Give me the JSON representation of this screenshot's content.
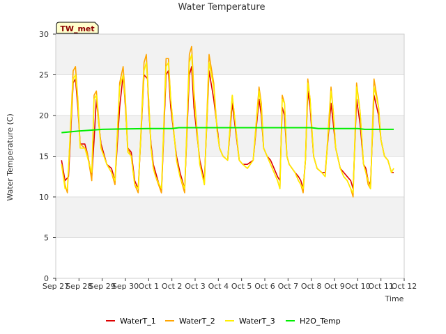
{
  "chart_data": {
    "type": "line",
    "title": "Water Temperature",
    "xlabel": "Time",
    "ylabel": "Water Temperature (C)",
    "station_label": "TW_met",
    "ylim": [
      0,
      30
    ],
    "yticks": [
      0,
      5,
      10,
      15,
      20,
      25,
      30
    ],
    "xlim": [
      0,
      15
    ],
    "xticks": [
      "Sep 27",
      "Sep 28",
      "Sep 29",
      "Sep 30",
      "Oct 1",
      "Oct 2",
      "Oct 3",
      "Oct 4",
      "Oct 5",
      "Oct 6",
      "Oct 7",
      "Oct 8",
      "Oct 9",
      "Oct 10",
      "Oct 11",
      "Oct 12"
    ],
    "grid": "horizontal bands",
    "legend_position": "bottom",
    "series": [
      {
        "name": "WaterT_1",
        "color": "#dd0000",
        "x": [
          0.25,
          0.4,
          0.55,
          0.75,
          0.85,
          0.95,
          1.05,
          1.25,
          1.35,
          1.55,
          1.65,
          1.75,
          1.85,
          1.95,
          2.2,
          2.4,
          2.55,
          2.75,
          2.9,
          3.0,
          3.1,
          3.25,
          3.4,
          3.55,
          3.8,
          3.95,
          4.0,
          4.1,
          4.2,
          4.3,
          4.55,
          4.75,
          4.85,
          4.95,
          5.2,
          5.35,
          5.55,
          5.75,
          5.85,
          5.95,
          6.2,
          6.4,
          6.6,
          6.8,
          6.95,
          7.05,
          7.2,
          7.4,
          7.6,
          7.9,
          8.05,
          8.25,
          8.5,
          8.75,
          8.85,
          8.95,
          9.1,
          9.25,
          9.4,
          9.55,
          9.65,
          9.75,
          9.85,
          9.95,
          10.05,
          10.3,
          10.45,
          10.55,
          10.65,
          10.75,
          10.85,
          10.95,
          11.1,
          11.25,
          11.45,
          11.6,
          11.85,
          11.95,
          12.05,
          12.25,
          12.4,
          12.55,
          12.7,
          12.8,
          12.95,
          13.1,
          13.25,
          13.35,
          13.45,
          13.55,
          13.7,
          13.9,
          14.0,
          14.15,
          14.3,
          14.45,
          14.55
        ],
        "values": [
          14.5,
          12.0,
          12.5,
          24.0,
          24.5,
          21.0,
          16.5,
          16.5,
          15.5,
          12.5,
          17.0,
          22.0,
          19.0,
          16.5,
          14.0,
          13.5,
          12.0,
          21.0,
          25.0,
          21.0,
          16.0,
          15.5,
          12.0,
          11.0,
          25.0,
          24.5,
          21.0,
          16.5,
          14.0,
          13.0,
          10.5,
          25.0,
          25.5,
          21.0,
          15.0,
          13.0,
          11.0,
          25.0,
          26.0,
          21.0,
          14.5,
          12.0,
          25.5,
          22.0,
          18.5,
          16.0,
          15.0,
          14.5,
          21.5,
          14.5,
          14.0,
          14.0,
          14.5,
          22.0,
          20.0,
          16.0,
          15.0,
          14.5,
          13.5,
          12.5,
          12.0,
          21.0,
          20.0,
          15.0,
          14.0,
          13.0,
          12.5,
          12.0,
          11.0,
          14.5,
          23.0,
          21.0,
          15.0,
          13.5,
          13.0,
          13.0,
          21.5,
          19.0,
          16.0,
          13.5,
          13.0,
          12.5,
          12.0,
          11.0,
          22.0,
          19.0,
          14.0,
          13.5,
          12.0,
          11.5,
          22.5,
          20.0,
          17.0,
          15.0,
          14.5,
          13.0,
          13.0
        ]
      },
      {
        "name": "WaterT_2",
        "color": "#ffa500",
        "x": [
          0.25,
          0.4,
          0.5,
          0.75,
          0.85,
          0.95,
          1.05,
          1.25,
          1.35,
          1.55,
          1.65,
          1.75,
          1.85,
          1.95,
          2.2,
          2.4,
          2.55,
          2.75,
          2.9,
          3.0,
          3.1,
          3.25,
          3.4,
          3.55,
          3.8,
          3.9,
          4.0,
          4.1,
          4.2,
          4.3,
          4.55,
          4.75,
          4.85,
          4.95,
          5.2,
          5.35,
          5.55,
          5.75,
          5.85,
          5.95,
          6.2,
          6.4,
          6.6,
          6.8,
          6.95,
          7.05,
          7.2,
          7.4,
          7.6,
          7.9,
          8.05,
          8.25,
          8.5,
          8.75,
          8.85,
          8.95,
          9.1,
          9.25,
          9.4,
          9.55,
          9.65,
          9.75,
          9.85,
          9.95,
          10.05,
          10.3,
          10.45,
          10.55,
          10.65,
          10.75,
          10.85,
          10.95,
          11.1,
          11.25,
          11.45,
          11.6,
          11.85,
          11.95,
          12.05,
          12.25,
          12.4,
          12.55,
          12.7,
          12.8,
          12.95,
          13.1,
          13.25,
          13.35,
          13.45,
          13.55,
          13.7,
          13.9,
          14.0,
          14.15,
          14.3,
          14.45,
          14.55
        ],
        "values": [
          14.0,
          11.5,
          10.5,
          25.5,
          26.0,
          22.0,
          16.5,
          16.0,
          15.5,
          12.0,
          22.5,
          23.0,
          19.5,
          16.0,
          14.0,
          13.0,
          11.5,
          24.0,
          26.0,
          22.0,
          16.0,
          15.0,
          11.5,
          10.5,
          26.5,
          27.5,
          22.0,
          16.0,
          13.5,
          12.5,
          10.5,
          27.0,
          27.0,
          22.0,
          14.5,
          12.5,
          10.5,
          27.5,
          28.5,
          23.0,
          14.0,
          11.5,
          27.5,
          24.0,
          18.0,
          16.0,
          15.0,
          14.5,
          22.5,
          14.5,
          14.0,
          13.5,
          14.5,
          23.5,
          21.5,
          16.0,
          15.0,
          14.0,
          13.0,
          12.0,
          11.0,
          22.5,
          21.5,
          15.0,
          14.0,
          13.0,
          12.0,
          11.5,
          10.5,
          14.5,
          24.5,
          22.0,
          15.0,
          13.5,
          13.0,
          12.5,
          23.5,
          20.5,
          16.0,
          13.5,
          12.5,
          12.0,
          11.0,
          10.0,
          24.0,
          20.5,
          14.0,
          13.0,
          11.5,
          11.0,
          24.5,
          21.0,
          17.0,
          15.0,
          14.5,
          13.0,
          13.5
        ]
      },
      {
        "name": "WaterT_3",
        "color": "#ffee00",
        "x": [
          0.25,
          0.4,
          0.5,
          0.75,
          0.85,
          0.95,
          1.05,
          1.25,
          1.35,
          1.55,
          1.65,
          1.75,
          1.85,
          1.95,
          2.2,
          2.4,
          2.55,
          2.75,
          2.9,
          3.0,
          3.1,
          3.25,
          3.4,
          3.55,
          3.8,
          3.9,
          4.0,
          4.1,
          4.2,
          4.3,
          4.55,
          4.75,
          4.85,
          4.95,
          5.2,
          5.35,
          5.55,
          5.75,
          5.85,
          5.95,
          6.2,
          6.4,
          6.6,
          6.8,
          6.95,
          7.05,
          7.2,
          7.4,
          7.6,
          7.9,
          8.05,
          8.25,
          8.5,
          8.75,
          8.85,
          8.95,
          9.1,
          9.25,
          9.4,
          9.55,
          9.65,
          9.75,
          9.85,
          9.95,
          10.05,
          10.3,
          10.45,
          10.55,
          10.65,
          10.75,
          10.85,
          10.95,
          11.1,
          11.25,
          11.45,
          11.6,
          11.85,
          11.95,
          12.05,
          12.25,
          12.4,
          12.55,
          12.7,
          12.8,
          12.95,
          13.1,
          13.25,
          13.35,
          13.45,
          13.55,
          13.7,
          13.9,
          14.0,
          14.15,
          14.3,
          14.45,
          14.55
        ],
        "values": [
          14.0,
          11.0,
          11.0,
          24.5,
          25.0,
          22.0,
          16.0,
          16.0,
          15.0,
          13.0,
          22.0,
          22.5,
          19.0,
          16.0,
          14.0,
          13.0,
          12.0,
          23.5,
          25.0,
          21.5,
          15.5,
          15.0,
          11.5,
          11.0,
          25.5,
          26.5,
          22.0,
          16.0,
          13.5,
          12.5,
          11.0,
          26.0,
          26.5,
          22.0,
          14.5,
          12.5,
          11.0,
          26.5,
          27.5,
          22.5,
          14.0,
          11.5,
          26.5,
          23.5,
          18.0,
          16.0,
          15.0,
          14.5,
          22.5,
          14.5,
          14.0,
          13.5,
          14.5,
          23.0,
          21.0,
          16.0,
          15.0,
          14.0,
          13.0,
          12.0,
          11.0,
          22.0,
          21.5,
          15.0,
          14.0,
          13.0,
          12.0,
          11.5,
          11.0,
          14.5,
          24.0,
          22.0,
          15.0,
          13.5,
          13.0,
          12.5,
          23.0,
          20.5,
          16.0,
          13.5,
          12.5,
          12.0,
          11.0,
          10.5,
          23.5,
          20.5,
          14.0,
          13.0,
          12.0,
          11.0,
          23.5,
          21.0,
          17.0,
          15.0,
          14.5,
          13.0,
          13.5
        ]
      },
      {
        "name": "H2O_Temp",
        "color": "#00ee00",
        "x": [
          0.25,
          1.0,
          1.5,
          2.0,
          3.0,
          4.0,
          5.0,
          5.3,
          6.0,
          8.0,
          10.0,
          11.0,
          11.3,
          12.0,
          13.0,
          13.3,
          14.0,
          14.55
        ],
        "values": [
          17.9,
          18.1,
          18.2,
          18.3,
          18.35,
          18.4,
          18.4,
          18.5,
          18.5,
          18.5,
          18.5,
          18.5,
          18.4,
          18.4,
          18.4,
          18.3,
          18.3,
          18.3
        ]
      }
    ]
  }
}
